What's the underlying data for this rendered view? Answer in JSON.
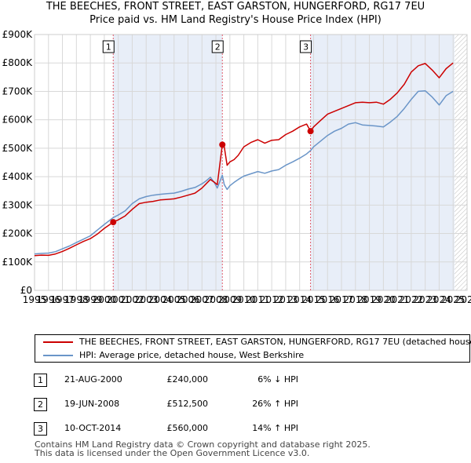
{
  "title": {
    "line1": "THE BEECHES, FRONT STREET, EAST GARSTON, HUNGERFORD, RG17 7EU",
    "line2": "Price paid vs. HM Land Registry's House Price Index (HPI)"
  },
  "colors": {
    "property_line": "#cc0000",
    "hpi_line": "#6a95c8",
    "shade": "#e8eef8",
    "vline": "#e05a6a",
    "grid": "#d8d8d8"
  },
  "chart_data": {
    "type": "line",
    "title": "Price paid vs. HM Land Registry's House Price Index (HPI)",
    "xlabel": "",
    "ylabel": "",
    "xlim": [
      1995,
      2026
    ],
    "ylim": [
      0,
      900000
    ],
    "y_ticks": [
      0,
      100000,
      200000,
      300000,
      400000,
      500000,
      600000,
      700000,
      800000,
      900000
    ],
    "y_tick_labels": [
      "£0",
      "£100K",
      "£200K",
      "£300K",
      "£400K",
      "£500K",
      "£600K",
      "£700K",
      "£800K",
      "£900K"
    ],
    "x_ticks": [
      1995,
      1996,
      1997,
      1998,
      1999,
      2000,
      2001,
      2002,
      2003,
      2004,
      2005,
      2006,
      2007,
      2008,
      2009,
      2010,
      2011,
      2012,
      2013,
      2014,
      2015,
      2016,
      2017,
      2018,
      2019,
      2020,
      2021,
      2022,
      2023,
      2024,
      2025,
      2026
    ],
    "grid": true,
    "shaded_ranges": [
      [
        2000.64,
        2008.46
      ],
      [
        2014.78,
        2025.1
      ]
    ],
    "hatch_from": 2025.1,
    "series": [
      {
        "name": "THE BEECHES, FRONT STREET, EAST GARSTON, HUNGERFORD, RG17 7EU (detached house)",
        "color": "#cc0000",
        "x": [
          1995.0,
          1995.5,
          1996.0,
          1996.5,
          1997.0,
          1997.5,
          1998.0,
          1998.5,
          1999.0,
          1999.5,
          2000.0,
          2000.64,
          2001.0,
          2001.5,
          2002.0,
          2002.5,
          2003.0,
          2003.5,
          2004.0,
          2004.5,
          2005.0,
          2005.5,
          2006.0,
          2006.5,
          2007.0,
          2007.3,
          2007.6,
          2007.9,
          2008.1,
          2008.46,
          2008.6,
          2008.8,
          2009.0,
          2009.3,
          2009.6,
          2010.0,
          2010.5,
          2011.0,
          2011.5,
          2012.0,
          2012.5,
          2013.0,
          2013.5,
          2014.0,
          2014.5,
          2014.78,
          2015.0,
          2015.5,
          2016.0,
          2016.5,
          2017.0,
          2017.5,
          2018.0,
          2018.5,
          2019.0,
          2019.5,
          2020.0,
          2020.5,
          2021.0,
          2021.5,
          2022.0,
          2022.5,
          2023.0,
          2023.5,
          2024.0,
          2024.5,
          2025.0
        ],
        "values": [
          122000,
          124000,
          123000,
          128000,
          137000,
          148000,
          160000,
          172000,
          182000,
          198000,
          218000,
          240000,
          248000,
          262000,
          285000,
          305000,
          310000,
          313000,
          318000,
          320000,
          322000,
          328000,
          335000,
          342000,
          360000,
          375000,
          390000,
          380000,
          372000,
          512500,
          505000,
          440000,
          452000,
          460000,
          475000,
          505000,
          520000,
          530000,
          518000,
          528000,
          530000,
          548000,
          560000,
          575000,
          585000,
          560000,
          575000,
          598000,
          620000,
          630000,
          640000,
          650000,
          660000,
          662000,
          660000,
          662000,
          655000,
          672000,
          695000,
          725000,
          768000,
          790000,
          798000,
          775000,
          748000,
          780000,
          800000
        ]
      },
      {
        "name": "HPI: Average price, detached house, West Berkshire",
        "color": "#6a95c8",
        "x": [
          1995.0,
          1995.5,
          1996.0,
          1996.5,
          1997.0,
          1997.5,
          1998.0,
          1998.5,
          1999.0,
          1999.5,
          2000.0,
          2000.64,
          2001.0,
          2001.5,
          2002.0,
          2002.5,
          2003.0,
          2003.5,
          2004.0,
          2004.5,
          2005.0,
          2005.5,
          2006.0,
          2006.5,
          2007.0,
          2007.3,
          2007.6,
          2007.9,
          2008.1,
          2008.46,
          2008.6,
          2008.8,
          2009.0,
          2009.3,
          2009.6,
          2010.0,
          2010.5,
          2011.0,
          2011.5,
          2012.0,
          2012.5,
          2013.0,
          2013.5,
          2014.0,
          2014.5,
          2014.78,
          2015.0,
          2015.5,
          2016.0,
          2016.5,
          2017.0,
          2017.5,
          2018.0,
          2018.5,
          2019.0,
          2019.5,
          2020.0,
          2020.5,
          2021.0,
          2021.5,
          2022.0,
          2022.5,
          2023.0,
          2023.5,
          2024.0,
          2024.5,
          2025.0
        ],
        "values": [
          128000,
          130000,
          131000,
          136000,
          146000,
          156000,
          168000,
          180000,
          192000,
          212000,
          232000,
          256000,
          265000,
          280000,
          305000,
          322000,
          330000,
          335000,
          338000,
          340000,
          342000,
          348000,
          356000,
          362000,
          375000,
          385000,
          398000,
          378000,
          360000,
          405000,
          372000,
          355000,
          368000,
          380000,
          390000,
          402000,
          410000,
          418000,
          412000,
          420000,
          425000,
          440000,
          452000,
          465000,
          480000,
          492000,
          505000,
          525000,
          545000,
          560000,
          570000,
          585000,
          590000,
          582000,
          580000,
          578000,
          575000,
          592000,
          612000,
          640000,
          672000,
          700000,
          702000,
          680000,
          652000,
          685000,
          700000
        ]
      }
    ],
    "markers": [
      {
        "label": "1",
        "x": 2000.64,
        "y": 240000
      },
      {
        "label": "2",
        "x": 2008.46,
        "y": 512500
      },
      {
        "label": "3",
        "x": 2014.78,
        "y": 560000
      }
    ]
  },
  "legend": {
    "property": "THE BEECHES, FRONT STREET, EAST GARSTON, HUNGERFORD, RG17 7EU (detached house)",
    "hpi": "HPI: Average price, detached house, West Berkshire"
  },
  "transactions": [
    {
      "num": "1",
      "date": "21-AUG-2000",
      "price": "£240,000",
      "hpi": "6% ↓ HPI"
    },
    {
      "num": "2",
      "date": "19-JUN-2008",
      "price": "£512,500",
      "hpi": "26% ↑ HPI"
    },
    {
      "num": "3",
      "date": "10-OCT-2014",
      "price": "£560,000",
      "hpi": "14% ↑ HPI"
    }
  ],
  "footer": {
    "line1": "Contains HM Land Registry data © Crown copyright and database right 2025.",
    "line2": "This data is licensed under the Open Government Licence v3.0."
  }
}
